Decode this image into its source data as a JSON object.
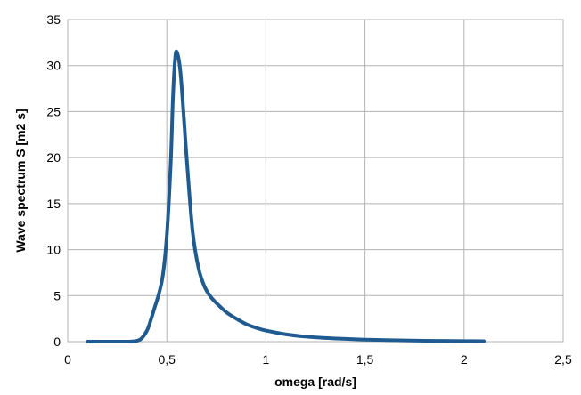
{
  "chart_data": {
    "type": "line",
    "title": "",
    "xlabel": "omega [rad/s]",
    "ylabel": "Wave spectrum S [m2 s]",
    "xlim": [
      0,
      2.5
    ],
    "ylim": [
      0,
      35
    ],
    "x_ticks": [
      "0",
      "0,5",
      "1",
      "1,5",
      "2",
      "2,5"
    ],
    "y_ticks": [
      "0",
      "5",
      "10",
      "15",
      "20",
      "25",
      "30",
      "35"
    ],
    "grid": true,
    "legend": "none",
    "color": "#1f5b91",
    "series": [
      {
        "x": [
          0.1,
          0.2,
          0.3,
          0.34,
          0.37,
          0.4,
          0.42,
          0.44,
          0.46,
          0.48,
          0.5,
          0.52,
          0.53,
          0.54,
          0.55,
          0.57,
          0.6,
          0.63,
          0.66,
          0.69,
          0.72,
          0.75,
          0.8,
          0.85,
          0.9,
          0.95,
          1.0,
          1.1,
          1.2,
          1.3,
          1.4,
          1.5,
          1.6,
          1.7,
          1.8,
          1.9,
          2.0,
          2.1
        ],
        "y": [
          0,
          0,
          0,
          0.05,
          0.3,
          1.2,
          2.4,
          3.8,
          5.2,
          7.2,
          11.5,
          19.5,
          26.0,
          30.2,
          31.5,
          29.0,
          20.0,
          12.0,
          8.0,
          6.0,
          4.9,
          4.2,
          3.2,
          2.5,
          1.9,
          1.5,
          1.2,
          0.8,
          0.55,
          0.4,
          0.3,
          0.22,
          0.17,
          0.13,
          0.1,
          0.08,
          0.06,
          0.05
        ]
      }
    ]
  }
}
